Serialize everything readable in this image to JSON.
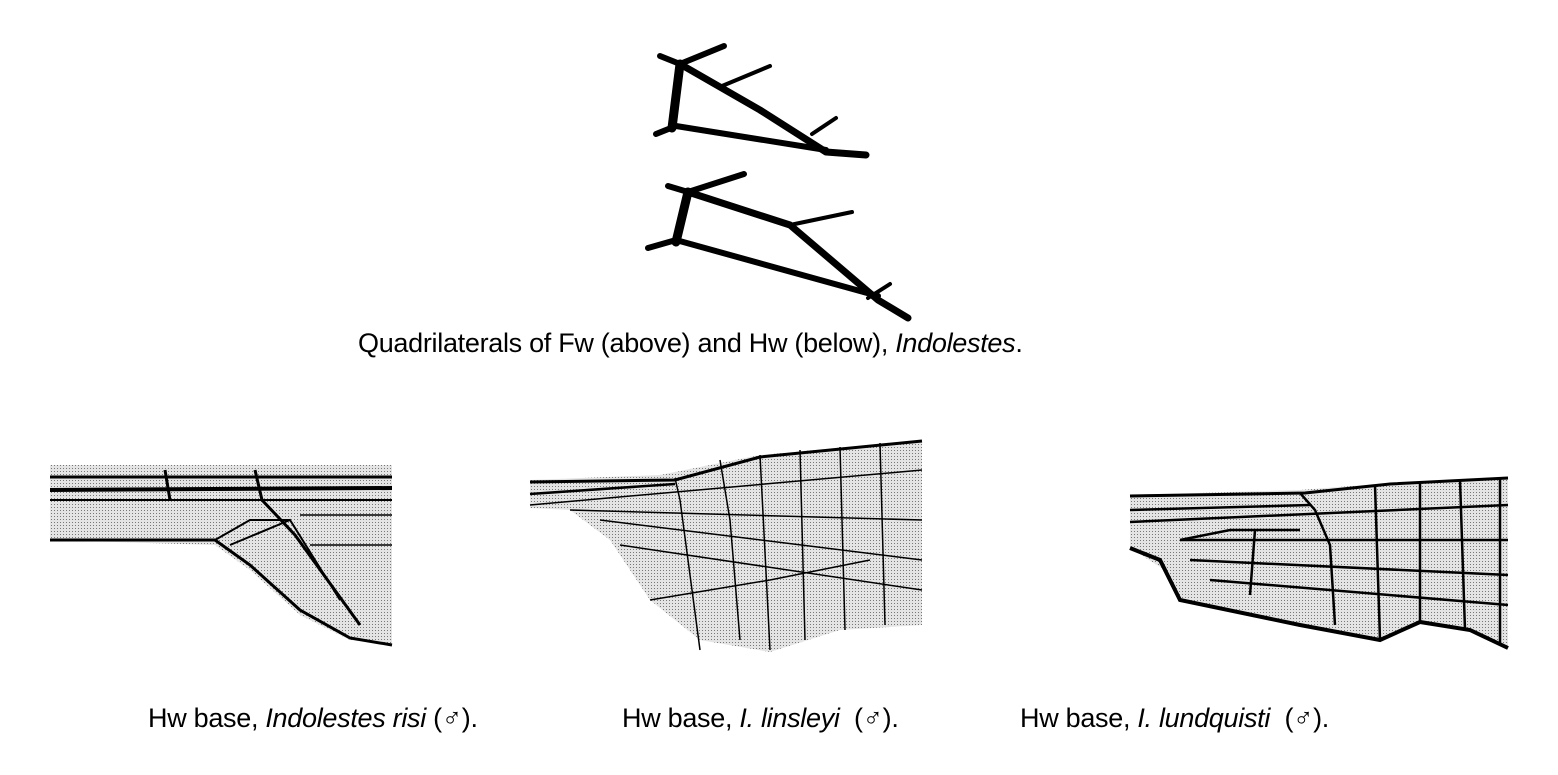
{
  "figure": {
    "top_caption": {
      "text": "Quadrilaterals of Fw (above) and Hw (below), ",
      "italic": "Indolestes",
      "end": "."
    },
    "captions": [
      {
        "prefix": "Hw base, ",
        "italic": "Indolestes risi",
        "suffix": " (♂)."
      },
      {
        "prefix": "Hw base, ",
        "italic": "I. linsleyi",
        "suffix": "  (♂)."
      },
      {
        "prefix": "Hw base, ",
        "italic": "I. lundquisti",
        "suffix": "  (♂)."
      }
    ],
    "colors": {
      "ink": "#000000",
      "stipple": "#c8c8c8",
      "background": "#ffffff"
    }
  }
}
